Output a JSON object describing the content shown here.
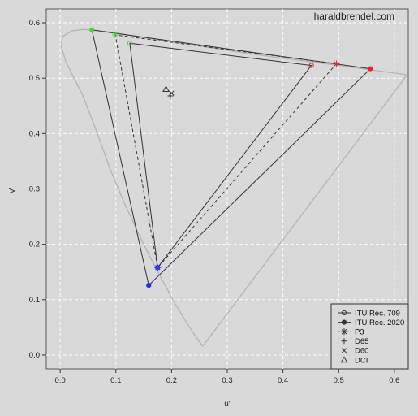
{
  "watermark": "haraldbrendel.com",
  "chart_data": {
    "type": "scatter",
    "title": "",
    "xlabel": "u'",
    "ylabel": "v'",
    "xlim": [
      -0.025,
      0.625
    ],
    "ylim": [
      -0.025,
      0.625
    ],
    "xticks": [
      0.0,
      0.1,
      0.2,
      0.3,
      0.4,
      0.5,
      0.6
    ],
    "yticks": [
      0.0,
      0.1,
      0.2,
      0.3,
      0.4,
      0.5,
      0.6
    ],
    "xtick_labels": [
      "0.0",
      "0.1",
      "0.2",
      "0.3",
      "0.4",
      "0.5",
      "0.6"
    ],
    "ytick_labels": [
      "0.0",
      "0.1",
      "0.2",
      "0.3",
      "0.4",
      "0.5",
      "0.6"
    ],
    "grid": true,
    "legend_position": "bottom-right",
    "spectral_locus": {
      "color": "#b3b3b3",
      "points": [
        [
          0.256,
          0.016
        ],
        [
          0.243,
          0.034
        ],
        [
          0.226,
          0.06
        ],
        [
          0.205,
          0.095
        ],
        [
          0.182,
          0.138
        ],
        [
          0.16,
          0.18
        ],
        [
          0.138,
          0.225
        ],
        [
          0.115,
          0.275
        ],
        [
          0.09,
          0.335
        ],
        [
          0.065,
          0.405
        ],
        [
          0.04,
          0.47
        ],
        [
          0.01,
          0.53
        ],
        [
          0.002,
          0.558
        ],
        [
          0.004,
          0.575
        ],
        [
          0.02,
          0.585
        ],
        [
          0.04,
          0.588
        ],
        [
          0.07,
          0.586
        ],
        [
          0.12,
          0.578
        ],
        [
          0.2,
          0.566
        ],
        [
          0.3,
          0.55
        ],
        [
          0.4,
          0.536
        ],
        [
          0.5,
          0.523
        ],
        [
          0.58,
          0.512
        ],
        [
          0.623,
          0.506
        ]
      ],
      "purple_line": [
        [
          0.256,
          0.016
        ],
        [
          0.623,
          0.506
        ]
      ]
    },
    "series": [
      {
        "name": "ITU Rec. 709",
        "style": "solid",
        "marker": "open-circle",
        "primaries": {
          "red": [
            0.451,
            0.523
          ],
          "green": [
            0.125,
            0.563
          ],
          "blue": [
            0.175,
            0.158
          ]
        }
      },
      {
        "name": "ITU Rec. 2020",
        "style": "solid",
        "marker": "filled-circle",
        "primaries": {
          "red": [
            0.557,
            0.517
          ],
          "green": [
            0.057,
            0.587
          ],
          "blue": [
            0.159,
            0.126
          ]
        }
      },
      {
        "name": "P3",
        "style": "dashed",
        "marker": "asterisk",
        "primaries": {
          "red": [
            0.496,
            0.526
          ],
          "green": [
            0.099,
            0.578
          ],
          "blue": [
            0.175,
            0.158
          ]
        }
      }
    ],
    "white_points": [
      {
        "name": "D65",
        "marker": "plus",
        "u": 0.198,
        "v": 0.468
      },
      {
        "name": "D60",
        "marker": "cross",
        "u": 0.2,
        "v": 0.473
      },
      {
        "name": "DCI",
        "marker": "triangle",
        "u": 0.19,
        "v": 0.48
      }
    ],
    "colors": {
      "red": "#e8232a",
      "green": "#4cd13a",
      "blue": "#1f2ff0",
      "line": "#333333"
    }
  },
  "legend": {
    "items": [
      {
        "label": "ITU Rec. 709",
        "marker": "open-circle",
        "line": "solid"
      },
      {
        "label": "ITU Rec. 2020",
        "marker": "filled-circle",
        "line": "solid"
      },
      {
        "label": "P3",
        "marker": "asterisk",
        "line": "dashed"
      },
      {
        "label": "D65",
        "marker": "plus",
        "line": "none"
      },
      {
        "label": "D60",
        "marker": "cross",
        "line": "none"
      },
      {
        "label": "DCI",
        "marker": "triangle",
        "line": "none"
      }
    ]
  }
}
